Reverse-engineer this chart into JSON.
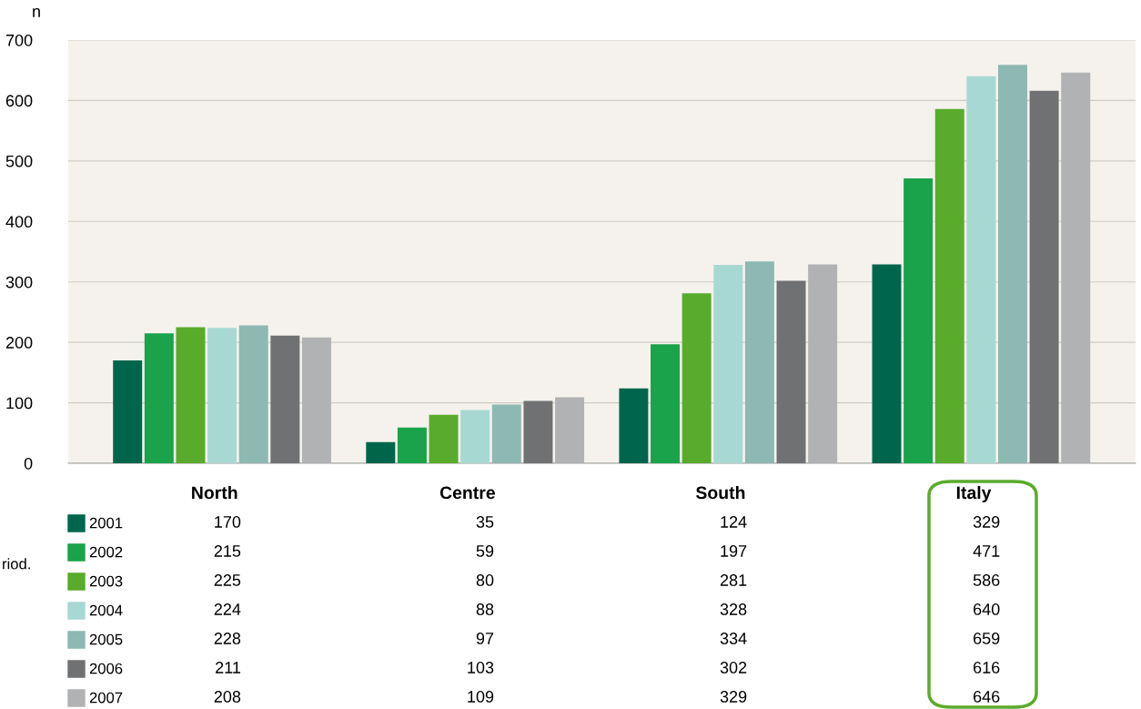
{
  "chart_data": {
    "type": "bar",
    "ylabel": "n",
    "categories": [
      "North",
      "Centre",
      "South",
      "Italy"
    ],
    "series": [
      {
        "name": "2001",
        "color": "#00664b",
        "values": [
          170,
          35,
          124,
          329
        ]
      },
      {
        "name": "2002",
        "color": "#1aa34a",
        "values": [
          215,
          59,
          197,
          471
        ]
      },
      {
        "name": "2003",
        "color": "#58ab2b",
        "values": [
          225,
          80,
          281,
          586
        ]
      },
      {
        "name": "2004",
        "color": "#a8d8d2",
        "values": [
          224,
          88,
          328,
          640
        ]
      },
      {
        "name": "2005",
        "color": "#8eb8b2",
        "values": [
          228,
          97,
          334,
          659
        ]
      },
      {
        "name": "2006",
        "color": "#707173",
        "values": [
          211,
          103,
          302,
          616
        ]
      },
      {
        "name": "2007",
        "color": "#b1b2b4",
        "values": [
          208,
          109,
          329,
          646
        ]
      }
    ],
    "ylim": [
      0,
      700
    ],
    "yticks": [
      0,
      100,
      200,
      300,
      400,
      500,
      600,
      700
    ],
    "grid": "y",
    "data_labels": true,
    "legend": "bottom left",
    "annotations": [
      "riod."
    ]
  }
}
